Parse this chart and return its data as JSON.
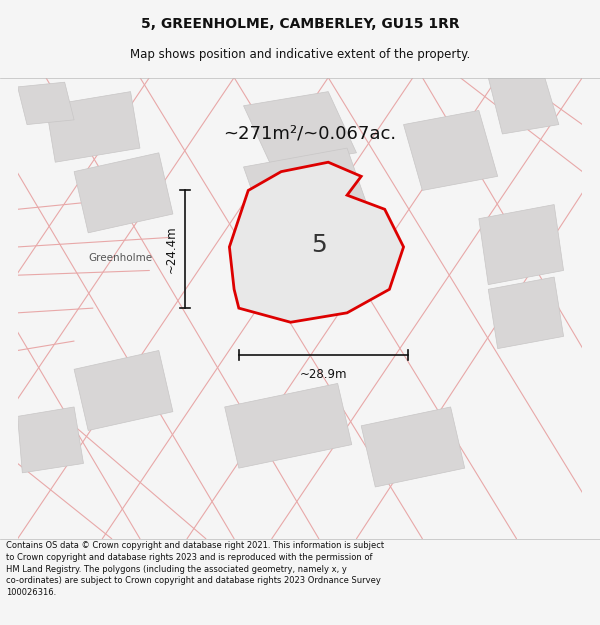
{
  "title": "5, GREENHOLME, CAMBERLEY, GU15 1RR",
  "subtitle": "Map shows position and indicative extent of the property.",
  "area_text": "~271m²/~0.067ac.",
  "plot_number": "5",
  "dim_width": "~28.9m",
  "dim_height": "~24.4m",
  "footer": "Contains OS data © Crown copyright and database right 2021. This information is subject to Crown copyright and database rights 2023 and is reproduced with the permission of HM Land Registry. The polygons (including the associated geometry, namely x, y co-ordinates) are subject to Crown copyright and database rights 2023 Ordnance Survey 100026316.",
  "bg_color": "#f5f5f5",
  "map_bg": "#f2f0f0",
  "plot_fill": "#e8e8e8",
  "plot_stroke": "#dd0000",
  "road_color": "#e8a8a8",
  "block_fill": "#d8d6d6",
  "block_edge": "#c8c6c6",
  "footer_color": "#111111",
  "title_color": "#111111",
  "dim_color": "#111111",
  "greenholme_color": "#555555"
}
